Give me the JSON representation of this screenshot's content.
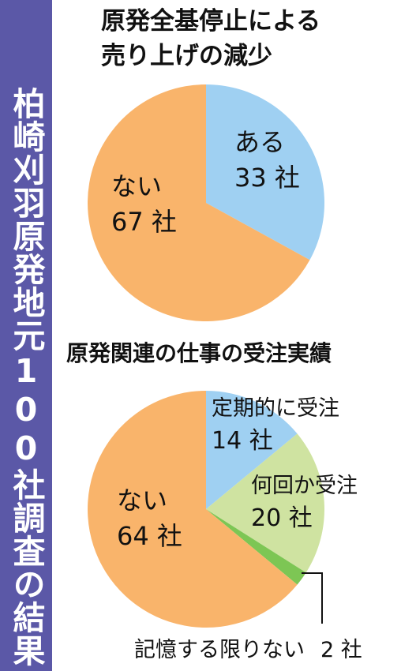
{
  "sidebar": {
    "text": "柏崎刈羽原発地元100社調査の結果"
  },
  "colors": {
    "sidebar": "#5b58a7",
    "orange": "#f9b46b",
    "blue": "#9fd0f2",
    "light_green": "#cfe3a1",
    "green": "#7dc654"
  },
  "chart_data": [
    {
      "type": "pie",
      "title_line1": "原発全基停止による",
      "title_line2": "売り上げの減少",
      "slices": [
        {
          "label": "ある",
          "value": 33,
          "value_label": "33 社",
          "color": "#9fd0f2"
        },
        {
          "label": "ない",
          "value": 67,
          "value_label": "67 社",
          "color": "#f9b46b"
        }
      ]
    },
    {
      "type": "pie",
      "title": "原発関連の仕事の受注実績",
      "slices": [
        {
          "label": "定期的に受注",
          "value": 14,
          "value_label": "14 社",
          "color": "#9fd0f2"
        },
        {
          "label": "何回か受注",
          "value": 20,
          "value_label": "20 社",
          "color": "#cfe3a1"
        },
        {
          "label": "記憶する限りない",
          "value": 2,
          "value_label": "2 社",
          "color": "#7dc654"
        },
        {
          "label": "ない",
          "value": 64,
          "value_label": "64 社",
          "color": "#f9b46b"
        }
      ]
    }
  ]
}
